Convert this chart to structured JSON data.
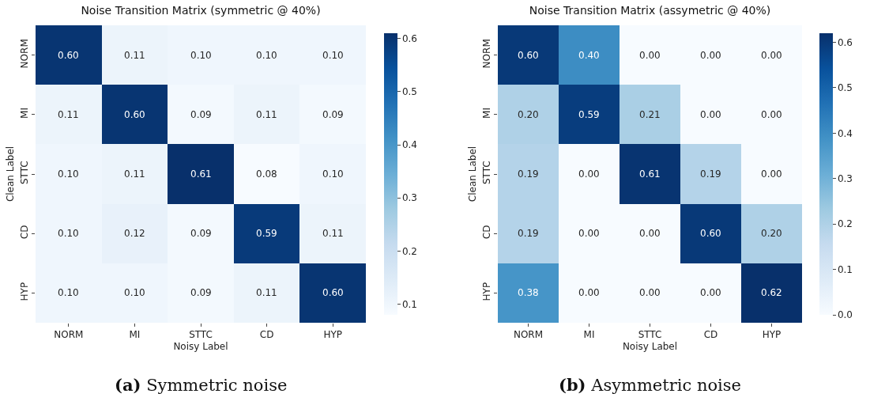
{
  "chart_data": [
    {
      "type": "heatmap",
      "title": "Noise Transition Matrix (symmetric @ 40%)",
      "xlabel": "Noisy Label",
      "ylabel": "Clean Label",
      "categories": [
        "NORM",
        "MI",
        "STTC",
        "CD",
        "HYP"
      ],
      "y_categories": [
        "NORM",
        "MI",
        "STTC",
        "CD",
        "HYP"
      ],
      "cells": [
        [
          0.6,
          0.11,
          0.1,
          0.1,
          0.1
        ],
        [
          0.11,
          0.6,
          0.09,
          0.11,
          0.09
        ],
        [
          0.1,
          0.11,
          0.61,
          0.08,
          0.1
        ],
        [
          0.1,
          0.12,
          0.09,
          0.59,
          0.11
        ],
        [
          0.1,
          0.1,
          0.09,
          0.11,
          0.6
        ]
      ],
      "cell_labels": [
        [
          "0.60",
          "0.11",
          "0.10",
          "0.10",
          "0.10"
        ],
        [
          "0.11",
          "0.60",
          "0.09",
          "0.11",
          "0.09"
        ],
        [
          "0.10",
          "0.11",
          "0.61",
          "0.08",
          "0.10"
        ],
        [
          "0.10",
          "0.12",
          "0.09",
          "0.59",
          "0.11"
        ],
        [
          "0.10",
          "0.10",
          "0.09",
          "0.11",
          "0.60"
        ]
      ],
      "clim": [
        0.08,
        0.61
      ],
      "cticks": [
        0.1,
        0.2,
        0.3,
        0.4,
        0.5,
        0.6
      ],
      "annotations": [
        "(a) Symmetric noise"
      ]
    },
    {
      "type": "heatmap",
      "title": "Noise Transition Matrix (assymetric @ 40%)",
      "xlabel": "Noisy Label",
      "ylabel": "Clean Label",
      "categories": [
        "NORM",
        "MI",
        "STTC",
        "CD",
        "HYP"
      ],
      "y_categories": [
        "NORM",
        "MI",
        "STTC",
        "CD",
        "HYP"
      ],
      "cells": [
        [
          0.6,
          0.4,
          0.0,
          0.0,
          0.0
        ],
        [
          0.2,
          0.59,
          0.21,
          0.0,
          0.0
        ],
        [
          0.19,
          0.0,
          0.61,
          0.19,
          0.0
        ],
        [
          0.19,
          0.0,
          0.0,
          0.6,
          0.2
        ],
        [
          0.38,
          0.0,
          0.0,
          0.0,
          0.62
        ]
      ],
      "cell_labels": [
        [
          "0.60",
          "0.40",
          "0.00",
          "0.00",
          "0.00"
        ],
        [
          "0.20",
          "0.59",
          "0.21",
          "0.00",
          "0.00"
        ],
        [
          "0.19",
          "0.00",
          "0.61",
          "0.19",
          "0.00"
        ],
        [
          "0.19",
          "0.00",
          "0.00",
          "0.60",
          "0.20"
        ],
        [
          "0.38",
          "0.00",
          "0.00",
          "0.00",
          "0.62"
        ]
      ],
      "clim": [
        0,
        0.62
      ],
      "cticks": [
        {
          "value": 0,
          "label": "0.0"
        },
        0.1,
        0.2,
        0.3,
        0.4,
        0.5,
        0.6
      ],
      "annotations": [
        "(b) Asymmetric noise"
      ]
    }
  ]
}
